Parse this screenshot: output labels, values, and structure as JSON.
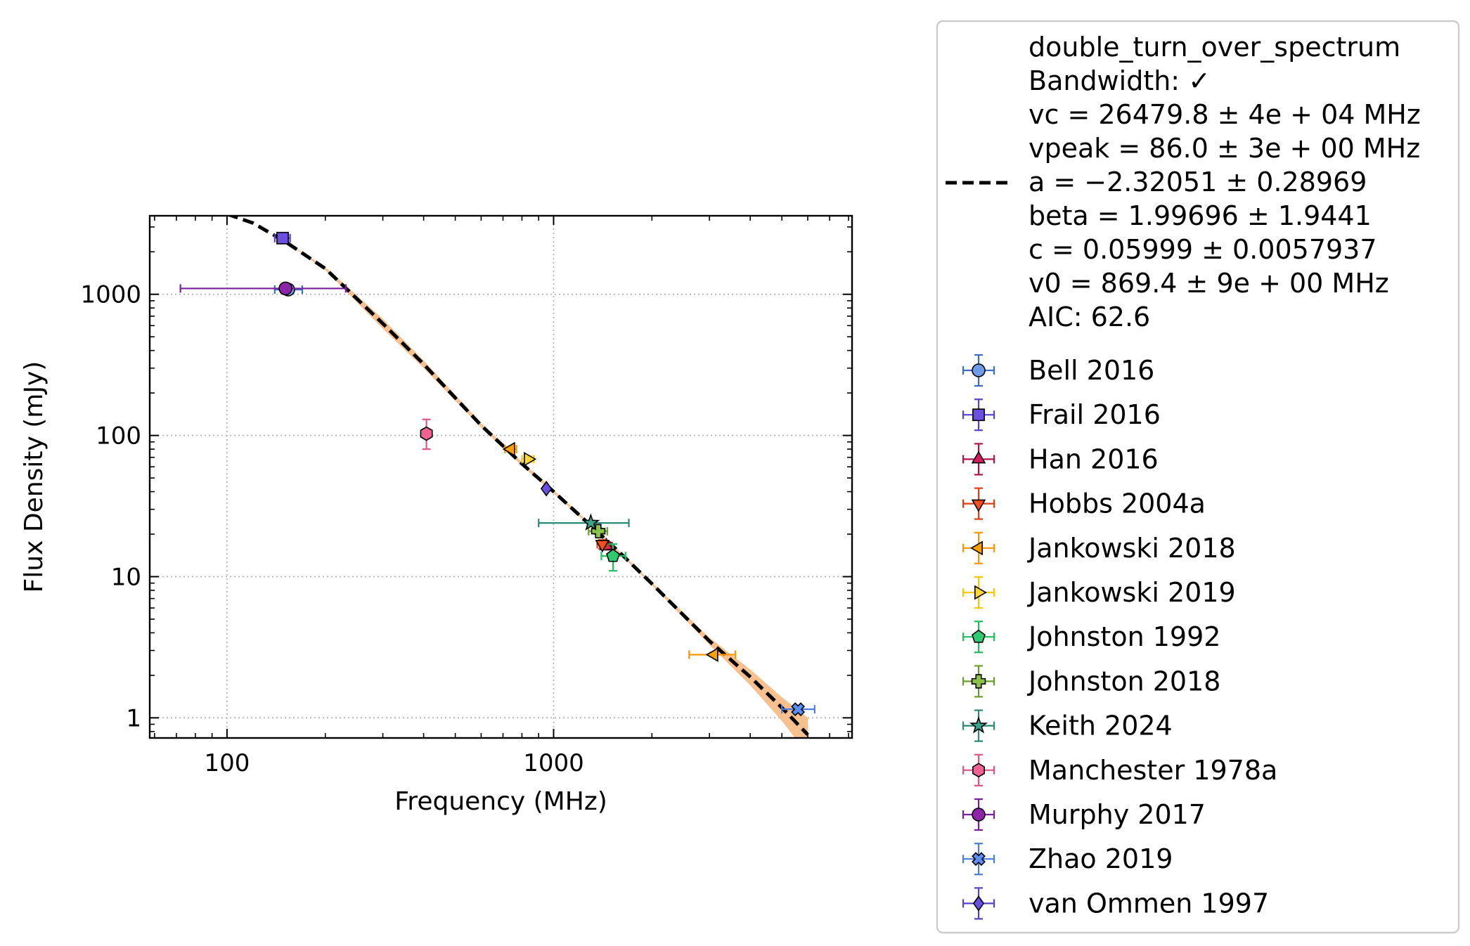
{
  "chart_data": {
    "type": "scatter",
    "title": "",
    "xlabel": "Frequency (MHz)",
    "ylabel": "Flux Density (mJy)",
    "xscale": "log",
    "yscale": "log",
    "xlim": [
      58,
      8200
    ],
    "ylim": [
      0.72,
      3600
    ],
    "grid": true,
    "legend_placement": "outside-right",
    "xticks": [
      {
        "v": 100,
        "label": "100"
      },
      {
        "v": 1000,
        "label": "1000"
      }
    ],
    "yticks": [
      {
        "v": 1,
        "label": "1"
      },
      {
        "v": 10,
        "label": "10"
      },
      {
        "v": 100,
        "label": "100"
      },
      {
        "v": 1000,
        "label": "1000"
      }
    ],
    "fit": {
      "label_lines": [
        "double_turn_over_spectrum",
        "Bandwidth: ✓",
        "vc = 26479.8 ± 4e + 04 MHz",
        "vpeak = 86.0 ± 3e + 00 MHz",
        "a = −2.32051 ± 0.28969",
        "beta = 1.99696 ± 1.9441",
        "c = 0.05999 ± 0.0057937",
        "v0 = 869.4 ± 9e + 00 MHz",
        "AIC: 62.6"
      ],
      "color": "#000000",
      "band_color": "#f9c08f",
      "x": [
        100,
        120,
        150,
        200,
        300,
        400,
        600,
        800,
        1000,
        1300,
        1600,
        2000,
        3000,
        4000,
        5000,
        6000
      ],
      "y": [
        3700,
        3200,
        2380,
        1520,
        620,
        320,
        118,
        63,
        40,
        23,
        14.7,
        8.9,
        3.5,
        1.95,
        1.18,
        0.76
      ],
      "band_low": [
        3700,
        3200,
        2380,
        1480,
        570,
        300,
        114,
        61,
        39,
        22.5,
        14.4,
        8.7,
        3.3,
        1.7,
        0.95,
        0.55
      ],
      "band_high": [
        3700,
        3200,
        2380,
        1560,
        670,
        340,
        122,
        65,
        41,
        23.5,
        15.0,
        9.1,
        3.7,
        2.2,
        1.4,
        1.0
      ]
    },
    "series": [
      {
        "name": "Bell 2016",
        "marker": "circle",
        "color": "#6f9ce8",
        "edge": "#3a6cd0",
        "points": [
          {
            "x": 154,
            "y": 1080,
            "xlo": 140,
            "xhi": 170,
            "ylo": 1000,
            "yhi": 1170
          }
        ]
      },
      {
        "name": "Frail 2016",
        "marker": "square",
        "color": "#6a4fe0",
        "edge": "#5a3fd0",
        "points": [
          {
            "x": 148,
            "y": 2500,
            "xlo": 140,
            "xhi": 156,
            "ylo": 2380,
            "yhi": 2620
          }
        ]
      },
      {
        "name": "Han 2016",
        "marker": "triangle-up",
        "color": "#d81b60",
        "edge": "#b0144e",
        "points": [
          {
            "x": 1450,
            "y": 16.5,
            "xlo": 1390,
            "xhi": 1510,
            "ylo": 15.5,
            "yhi": 17.5
          }
        ]
      },
      {
        "name": "Hobbs 2004a",
        "marker": "triangle-down",
        "color": "#f4511e",
        "edge": "#e04010",
        "points": [
          {
            "x": 1410,
            "y": 17,
            "xlo": 1360,
            "xhi": 1460,
            "ylo": 15.8,
            "yhi": 18.2
          }
        ]
      },
      {
        "name": "Jankowski 2018",
        "marker": "triangle-left",
        "color": "#ffa000",
        "edge": "#ff9800",
        "points": [
          {
            "x": 740,
            "y": 80,
            "xlo": 710,
            "xhi": 770,
            "ylo": 77,
            "yhi": 83
          },
          {
            "x": 3100,
            "y": 2.8,
            "xlo": 2600,
            "xhi": 3600,
            "ylo": 2.7,
            "yhi": 2.9
          }
        ]
      },
      {
        "name": "Jankowski 2019",
        "marker": "triangle-right",
        "color": "#fdd835",
        "edge": "#f9c800",
        "points": [
          {
            "x": 835,
            "y": 68,
            "xlo": 800,
            "xhi": 870,
            "ylo": 65,
            "yhi": 71
          }
        ]
      },
      {
        "name": "Johnston 1992",
        "marker": "pentagon",
        "color": "#2ecc71",
        "edge": "#1fbf60",
        "points": [
          {
            "x": 1520,
            "y": 14,
            "xlo": 1400,
            "xhi": 1660,
            "ylo": 11,
            "yhi": 17
          }
        ]
      },
      {
        "name": "Johnston 2018",
        "marker": "plus",
        "color": "#8bc34a",
        "edge": "#6a9e2a",
        "points": [
          {
            "x": 1370,
            "y": 21,
            "xlo": 1280,
            "xhi": 1460,
            "ylo": 20,
            "yhi": 22
          }
        ]
      },
      {
        "name": "Keith 2024",
        "marker": "star",
        "color": "#3aa58d",
        "edge": "#2b8a73",
        "points": [
          {
            "x": 1300,
            "y": 24,
            "xlo": 900,
            "xhi": 1700,
            "ylo": 23,
            "yhi": 25
          }
        ]
      },
      {
        "name": "Manchester 1978a",
        "marker": "hexagon",
        "color": "#f06292",
        "edge": "#e0558a",
        "points": [
          {
            "x": 408,
            "y": 103,
            "xlo": 408,
            "xhi": 408,
            "ylo": 80,
            "yhi": 130
          }
        ]
      },
      {
        "name": "Murphy 2017",
        "marker": "circle",
        "color": "#8e24aa",
        "edge": "#7b1fa2",
        "points": [
          {
            "x": 151,
            "y": 1100,
            "xlo": 72,
            "xhi": 231,
            "ylo": 1060,
            "yhi": 1140
          }
        ]
      },
      {
        "name": "Zhao 2019",
        "marker": "x",
        "color": "#5c8ef5",
        "edge": "#4a7de0",
        "points": [
          {
            "x": 5600,
            "y": 1.15,
            "xlo": 5000,
            "xhi": 6300,
            "ylo": 1.1,
            "yhi": 1.2
          }
        ]
      },
      {
        "name": "van Ommen 1997",
        "marker": "diamond",
        "color": "#6a4fe0",
        "edge": "#5a3fd0",
        "points": [
          {
            "x": 950,
            "y": 42,
            "xlo": 950,
            "xhi": 950,
            "ylo": 41,
            "yhi": 43
          }
        ]
      }
    ]
  }
}
